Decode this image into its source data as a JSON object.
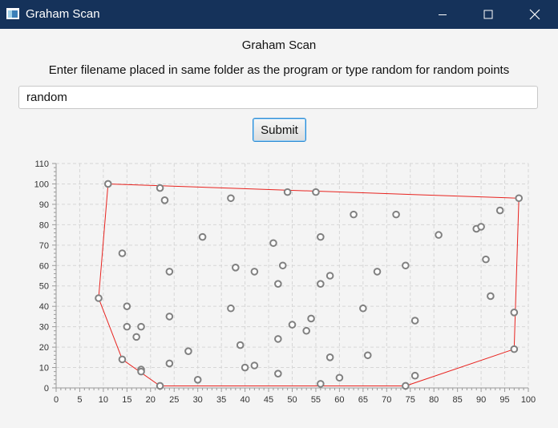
{
  "window": {
    "title": "Graham Scan",
    "icon": "java-app-icon",
    "controls": [
      "minimize-icon",
      "maximize-icon",
      "close-icon"
    ]
  },
  "header": {
    "title": "Graham Scan",
    "instruction": "Enter filename placed in same folder as the program or type random for random points"
  },
  "input": {
    "value": "random"
  },
  "submit": {
    "label": "Submit"
  },
  "colors": {
    "titlebar": "#15325a",
    "hull": "#e8231f",
    "point": "#808080",
    "grid": "#d6d6d6"
  },
  "chart_data": {
    "type": "scatter",
    "title": "",
    "xlabel": "",
    "ylabel": "",
    "xlim": [
      0,
      100
    ],
    "ylim": [
      0,
      110
    ],
    "x_ticks": [
      0,
      5,
      10,
      15,
      20,
      25,
      30,
      35,
      40,
      45,
      50,
      55,
      60,
      65,
      70,
      75,
      80,
      85,
      90,
      95,
      100
    ],
    "y_ticks": [
      0,
      10,
      20,
      30,
      40,
      50,
      60,
      70,
      80,
      90,
      100,
      110
    ],
    "grid": true,
    "legend": "none",
    "points": [
      [
        11,
        100
      ],
      [
        22,
        98
      ],
      [
        23,
        92
      ],
      [
        37,
        93
      ],
      [
        49,
        96
      ],
      [
        55,
        96
      ],
      [
        63,
        85
      ],
      [
        72,
        85
      ],
      [
        81,
        75
      ],
      [
        89,
        78
      ],
      [
        90,
        79
      ],
      [
        94,
        87
      ],
      [
        98,
        93
      ],
      [
        31,
        74
      ],
      [
        46,
        71
      ],
      [
        56,
        74
      ],
      [
        14,
        66
      ],
      [
        24,
        57
      ],
      [
        38,
        59
      ],
      [
        42,
        57
      ],
      [
        48,
        60
      ],
      [
        47,
        51
      ],
      [
        56,
        51
      ],
      [
        58,
        55
      ],
      [
        68,
        57
      ],
      [
        74,
        60
      ],
      [
        91,
        63
      ],
      [
        92,
        45
      ],
      [
        9,
        44
      ],
      [
        15,
        40
      ],
      [
        37,
        39
      ],
      [
        65,
        39
      ],
      [
        97,
        37
      ],
      [
        15,
        30
      ],
      [
        18,
        30
      ],
      [
        17,
        25
      ],
      [
        24,
        35
      ],
      [
        50,
        31
      ],
      [
        53,
        28
      ],
      [
        54,
        34
      ],
      [
        76,
        33
      ],
      [
        39,
        21
      ],
      [
        47,
        24
      ],
      [
        28,
        18
      ],
      [
        14,
        14
      ],
      [
        18,
        9
      ],
      [
        18,
        8
      ],
      [
        24,
        12
      ],
      [
        40,
        10
      ],
      [
        42,
        11
      ],
      [
        47,
        7
      ],
      [
        58,
        15
      ],
      [
        66,
        16
      ],
      [
        97,
        19
      ],
      [
        30,
        4
      ],
      [
        22,
        1
      ],
      [
        56,
        2
      ],
      [
        60,
        5
      ],
      [
        74,
        1
      ],
      [
        76,
        6
      ]
    ],
    "hull": [
      [
        11,
        100
      ],
      [
        98,
        93
      ],
      [
        97,
        19
      ],
      [
        74,
        1
      ],
      [
        22,
        1
      ],
      [
        14,
        14
      ],
      [
        9,
        44
      ],
      [
        11,
        100
      ]
    ]
  }
}
